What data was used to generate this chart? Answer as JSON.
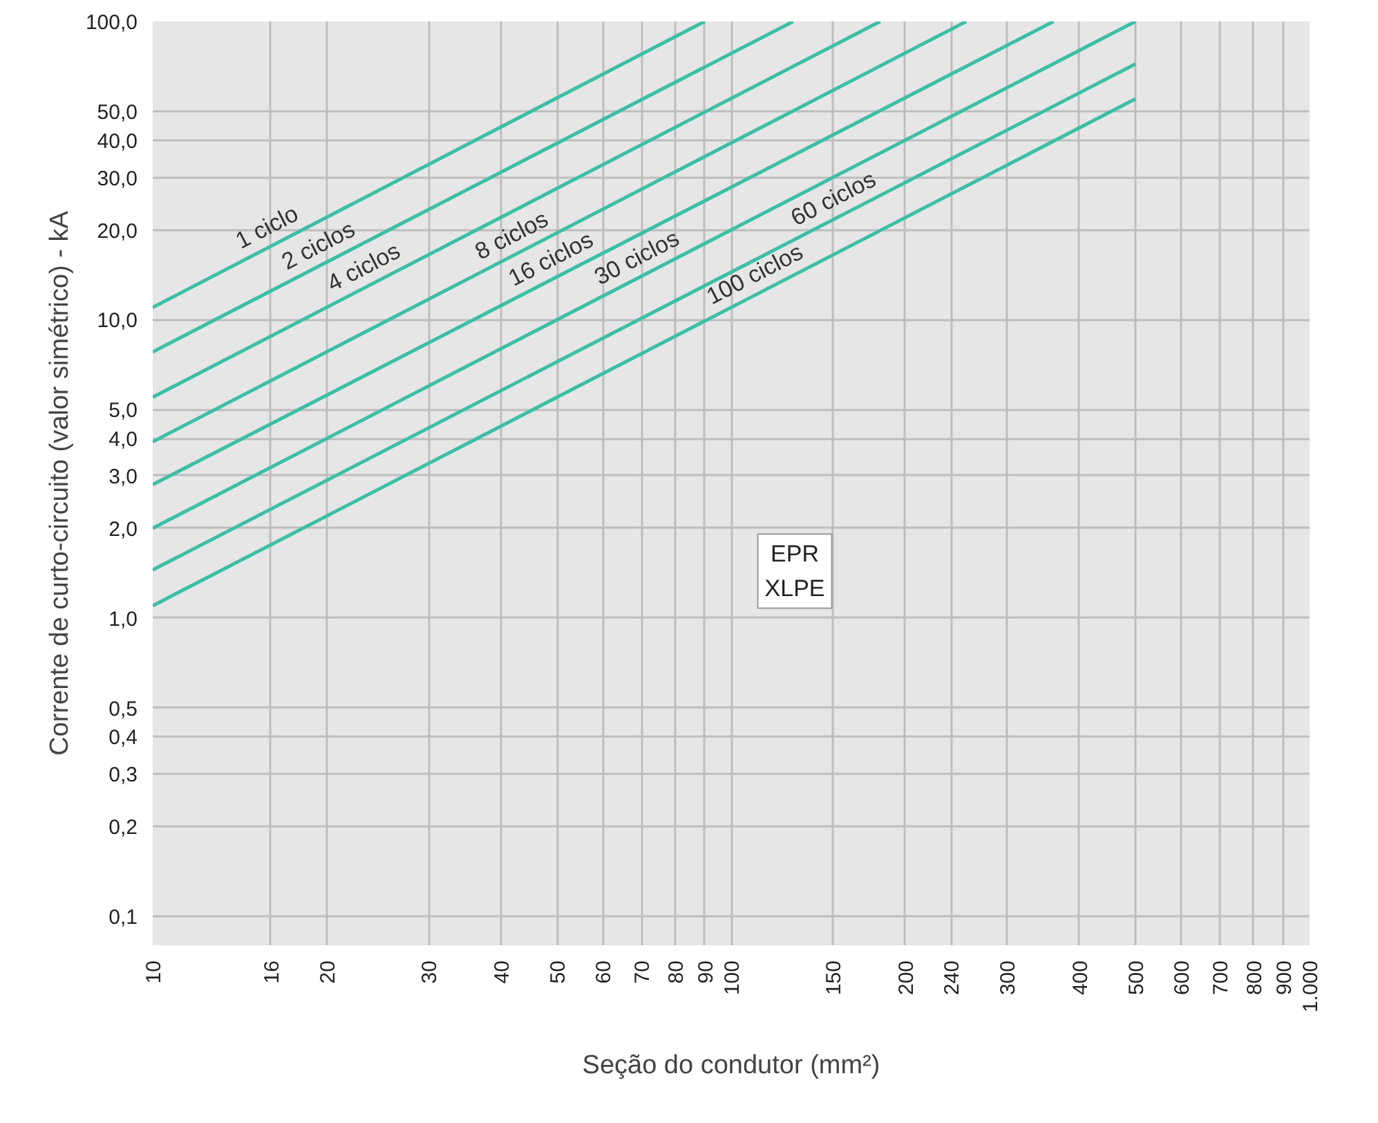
{
  "chart_data": {
    "type": "line",
    "xlabel": "Seção do condutor (mm²)",
    "ylabel": "Corrente de curto-circuito (valor simétrico) - kA",
    "log": "xy",
    "xlim": [
      10,
      1000
    ],
    "xticks": [
      10,
      16,
      20,
      30,
      40,
      50,
      60,
      70,
      80,
      90,
      100,
      150,
      200,
      240,
      300,
      400,
      500,
      600,
      700,
      800,
      900,
      {
        "value": 1000,
        "label": "1.000"
      }
    ],
    "ylim": [
      0.08,
      100
    ],
    "yticks": [
      {
        "value": 0.1,
        "label": "0,1"
      },
      {
        "value": 0.2,
        "label": "0,2"
      },
      {
        "value": 0.3,
        "label": "0,3"
      },
      {
        "value": 0.4,
        "label": "0,4"
      },
      {
        "value": 0.5,
        "label": "0,5"
      },
      {
        "value": 1,
        "label": "1,0"
      },
      {
        "value": 2,
        "label": "2,0"
      },
      {
        "value": 3,
        "label": "3,0"
      },
      {
        "value": 4,
        "label": "4,0"
      },
      {
        "value": 5,
        "label": "5,0"
      },
      {
        "value": 10,
        "label": "10,0"
      },
      {
        "value": 20,
        "label": "20,0"
      },
      {
        "value": 30,
        "label": "30,0"
      },
      {
        "value": 40,
        "label": "40,0"
      },
      {
        "value": 50,
        "label": "50,0"
      },
      {
        "value": 100,
        "label": "100,0"
      }
    ],
    "grid": true,
    "annotations": [
      "EPR\nXLPE"
    ],
    "series": [
      {
        "name": "1 ciclo",
        "color": "#3cbfa6",
        "x": [
          10,
          90
        ],
        "values": [
          11,
          100
        ]
      },
      {
        "name": "2 ciclos",
        "color": "#3cbfa6",
        "x": [
          10,
          128
        ],
        "values": [
          7.8,
          100
        ]
      },
      {
        "name": "4 ciclos",
        "color": "#3cbfa6",
        "x": [
          10,
          181
        ],
        "values": [
          5.5,
          100
        ]
      },
      {
        "name": "8 ciclos",
        "color": "#3cbfa6",
        "x": [
          10,
          255
        ],
        "values": [
          3.9,
          100
        ]
      },
      {
        "name": "16 ciclos",
        "color": "#3cbfa6",
        "x": [
          10,
          361
        ],
        "values": [
          2.8,
          100
        ]
      },
      {
        "name": "30 ciclos",
        "color": "#3cbfa6",
        "x": [
          10,
          500
        ],
        "values": [
          2.0,
          100
        ]
      },
      {
        "name": "60 ciclos",
        "color": "#3cbfa6",
        "x": [
          10,
          500
        ],
        "values": [
          1.45,
          72
        ]
      },
      {
        "name": "100 ciclos",
        "color": "#3cbfa6",
        "x": [
          10,
          500
        ],
        "values": [
          1.1,
          55
        ]
      }
    ]
  }
}
